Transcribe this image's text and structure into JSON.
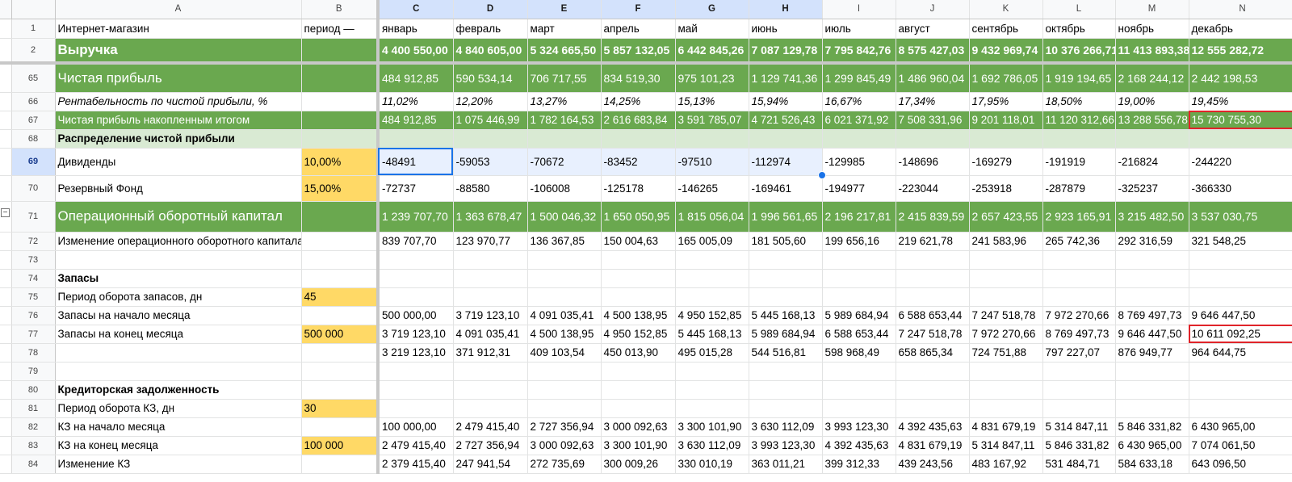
{
  "columns": [
    "A",
    "B",
    "C",
    "D",
    "E",
    "F",
    "G",
    "H",
    "I",
    "J",
    "K",
    "L",
    "M",
    "N"
  ],
  "rows": [
    {
      "num": "1",
      "cells": [
        "Интернет-магазин",
        "период —",
        "январь",
        "февраль",
        "март",
        "апрель",
        "май",
        "июнь",
        "июль",
        "август",
        "сентябрь",
        "октябрь",
        "ноябрь",
        "декабрь"
      ]
    },
    {
      "num": "2",
      "cells": [
        "Выручка",
        "",
        "4 400 550,00",
        "4 840 605,00",
        "5 324 665,50",
        "5 857 132,05",
        "6 442 845,26",
        "7 087 129,78",
        "7 795 842,76",
        "8 575 427,03",
        "9 432 969,74",
        "10 376 266,71",
        "11 413 893,38",
        "12 555 282,72"
      ]
    },
    {
      "num": "65",
      "cells": [
        "Чистая прибыль",
        "",
        "484 912,85",
        "590 534,14",
        "706 717,55",
        "834 519,30",
        "975 101,23",
        "1 129 741,36",
        "1 299 845,49",
        "1 486 960,04",
        "1 692 786,05",
        "1 919 194,65",
        "2 168 244,12",
        "2 442 198,53"
      ]
    },
    {
      "num": "66",
      "cells": [
        "Рентабельность по чистой прибыли, %",
        "",
        "11,02%",
        "12,20%",
        "13,27%",
        "14,25%",
        "15,13%",
        "15,94%",
        "16,67%",
        "17,34%",
        "17,95%",
        "18,50%",
        "19,00%",
        "19,45%"
      ]
    },
    {
      "num": "67",
      "cells": [
        "Чистая прибыль накопленным итогом",
        "",
        "484 912,85",
        "1 075 446,99",
        "1 782 164,53",
        "2 616 683,84",
        "3 591 785,07",
        "4 721 526,43",
        "6 021 371,92",
        "7 508 331,96",
        "9 201 118,01",
        "11 120 312,66",
        "13 288 556,78",
        "15 730 755,30"
      ]
    },
    {
      "num": "68",
      "cells": [
        "Распределение  чистой прибыли",
        "",
        "",
        "",
        "",
        "",
        "",
        "",
        "",
        "",
        "",
        "",
        "",
        ""
      ]
    },
    {
      "num": "69",
      "cells": [
        "Дивиденды",
        "10,00%",
        "-48491",
        "-59053",
        "-70672",
        "-83452",
        "-97510",
        "-112974",
        "-129985",
        "-148696",
        "-169279",
        "-191919",
        "-216824",
        "-244220"
      ]
    },
    {
      "num": "70",
      "cells": [
        "Резервный Фонд",
        "15,00%",
        "-72737",
        "-88580",
        "-106008",
        "-125178",
        "-146265",
        "-169461",
        "-194977",
        "-223044",
        "-253918",
        "-287879",
        "-325237",
        "-366330"
      ]
    },
    {
      "num": "71",
      "cells": [
        "Операционный оборотный капитал",
        "",
        "1 239 707,70",
        "1 363 678,47",
        "1 500 046,32",
        "1 650 050,95",
        "1 815 056,04",
        "1 996 561,65",
        "2 196 217,81",
        "2 415 839,59",
        "2 657 423,55",
        "2 923 165,91",
        "3 215 482,50",
        "3 537 030,75"
      ]
    },
    {
      "num": "72",
      "cells": [
        "Изменение операционного оборотного капитала",
        "",
        "839 707,70",
        "123 970,77",
        "136 367,85",
        "150 004,63",
        "165 005,09",
        "181 505,60",
        "199 656,16",
        "219 621,78",
        "241 583,96",
        "265 742,36",
        "292 316,59",
        "321 548,25"
      ]
    },
    {
      "num": "73",
      "cells": [
        "",
        "",
        "",
        "",
        "",
        "",
        "",
        "",
        "",
        "",
        "",
        "",
        "",
        ""
      ]
    },
    {
      "num": "74",
      "cells": [
        "Запасы",
        "",
        "",
        "",
        "",
        "",
        "",
        "",
        "",
        "",
        "",
        "",
        "",
        ""
      ]
    },
    {
      "num": "75",
      "cells": [
        "Период оборота запасов, дн",
        "45",
        "",
        "",
        "",
        "",
        "",
        "",
        "",
        "",
        "",
        "",
        "",
        ""
      ]
    },
    {
      "num": "76",
      "cells": [
        "Запасы на начало месяца",
        "",
        "500 000,00",
        "3 719 123,10",
        "4 091 035,41",
        "4 500 138,95",
        "4 950 152,85",
        "5 445 168,13",
        "5 989 684,94",
        "6 588 653,44",
        "7 247 518,78",
        "7 972 270,66",
        "8 769 497,73",
        "9 646 447,50"
      ]
    },
    {
      "num": "77",
      "cells": [
        "Запасы на конец месяца",
        "500 000",
        "3 719 123,10",
        "4 091 035,41",
        "4 500 138,95",
        "4 950 152,85",
        "5 445 168,13",
        "5 989 684,94",
        "6 588 653,44",
        "7 247 518,78",
        "7 972 270,66",
        "8 769 497,73",
        "9 646 447,50",
        "10 611 092,25"
      ]
    },
    {
      "num": "78",
      "cells": [
        "",
        "",
        "3 219 123,10",
        "371 912,31",
        "409 103,54",
        "450 013,90",
        "495 015,28",
        "544 516,81",
        "598 968,49",
        "658 865,34",
        "724 751,88",
        "797 227,07",
        "876 949,77",
        "964 644,75"
      ]
    },
    {
      "num": "79",
      "cells": [
        "",
        "",
        "",
        "",
        "",
        "",
        "",
        "",
        "",
        "",
        "",
        "",
        "",
        ""
      ]
    },
    {
      "num": "80",
      "cells": [
        "Кредиторская задолженность",
        "",
        "",
        "",
        "",
        "",
        "",
        "",
        "",
        "",
        "",
        "",
        "",
        ""
      ]
    },
    {
      "num": "81",
      "cells": [
        "Период оборота КЗ, дн",
        "30",
        "",
        "",
        "",
        "",
        "",
        "",
        "",
        "",
        "",
        "",
        "",
        ""
      ]
    },
    {
      "num": "82",
      "cells": [
        "КЗ на начало месяца",
        "",
        "100 000,00",
        "2 479 415,40",
        "2 727 356,94",
        "3 000 092,63",
        "3 300 101,90",
        "3 630 112,09",
        "3 993 123,30",
        "4 392 435,63",
        "4 831 679,19",
        "5 314 847,11",
        "5 846 331,82",
        "6 430 965,00"
      ]
    },
    {
      "num": "83",
      "cells": [
        "КЗ на конец месяца",
        "100 000",
        "2 479 415,40",
        "2 727 356,94",
        "3 000 092,63",
        "3 300 101,90",
        "3 630 112,09",
        "3 993 123,30",
        "4 392 435,63",
        "4 831 679,19",
        "5 314 847,11",
        "5 846 331,82",
        "6 430 965,00",
        "7 074 061,50"
      ]
    },
    {
      "num": "84",
      "cells": [
        "Изменение КЗ",
        "",
        "2 379 415,40",
        "247 941,54",
        "272 735,69",
        "300 009,26",
        "330 010,19",
        "363 011,21",
        "399 312,33",
        "439 243,56",
        "483 167,92",
        "531 484,71",
        "584 633,18",
        "643 096,50"
      ]
    }
  ],
  "selection": {
    "row": "69",
    "from_col": "C",
    "to_col": "H",
    "active": "C69"
  },
  "highlighted_cells": [
    "N67",
    "N77"
  ],
  "group_toggle": "−",
  "colors": {
    "green": "#6aa84f",
    "light_green": "#d9ead3",
    "yellow": "#ffd966",
    "selection_blue": "#1a73e8",
    "red_box": "#e0242a"
  }
}
